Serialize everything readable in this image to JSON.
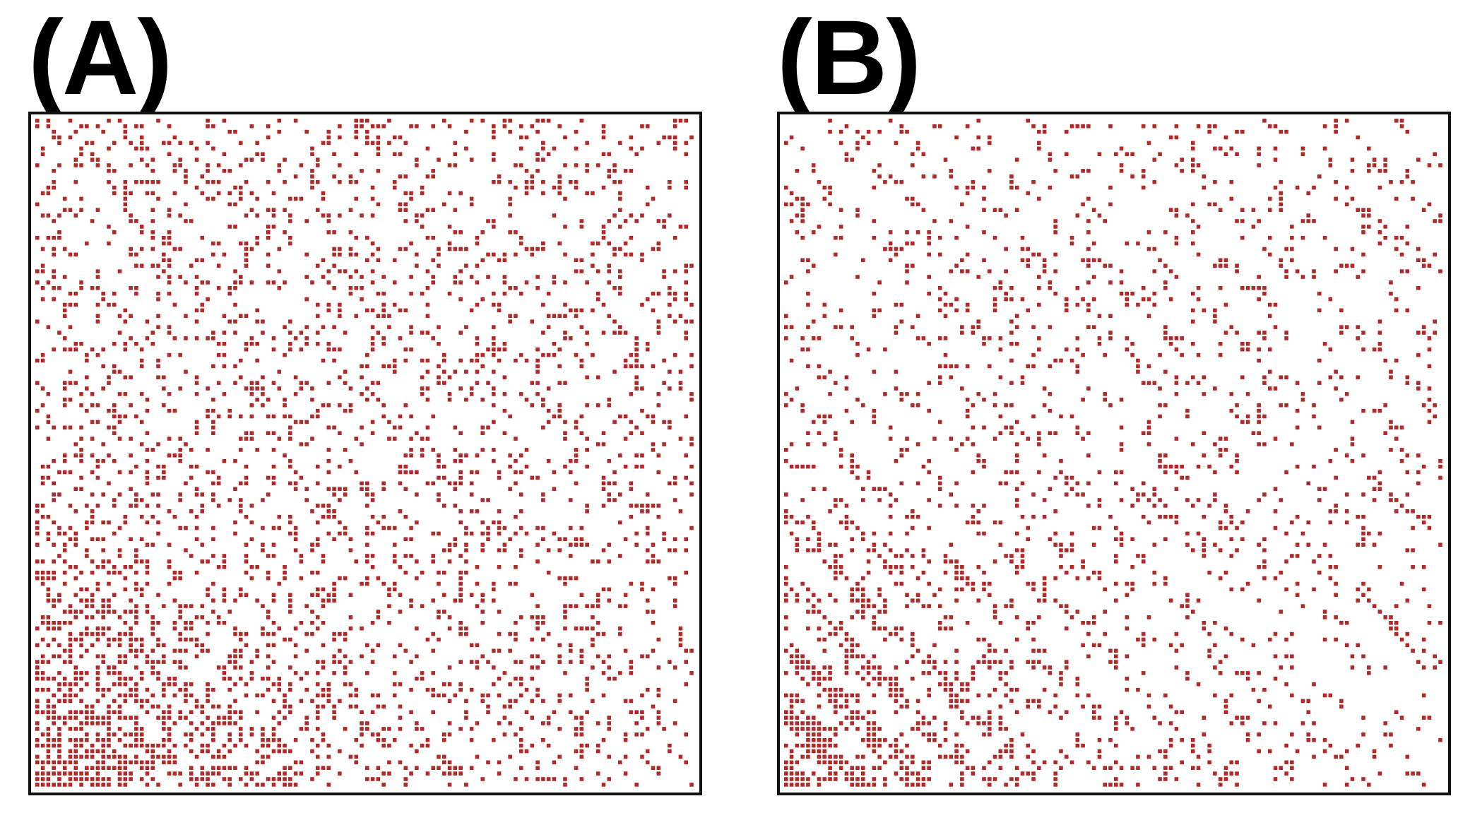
{
  "panels": [
    {
      "id": "A",
      "label": "(A)",
      "grid_size": 120,
      "dot_color": "#b02a2a",
      "pattern": "uniform-random",
      "density_top": 0.18,
      "density_bottom_left": 0.85
    },
    {
      "id": "B",
      "label": "(B)",
      "grid_size": 120,
      "dot_color": "#b02a2a",
      "pattern": "diagonal-bands",
      "density_top": 0.14,
      "density_bottom_left": 0.8
    }
  ]
}
